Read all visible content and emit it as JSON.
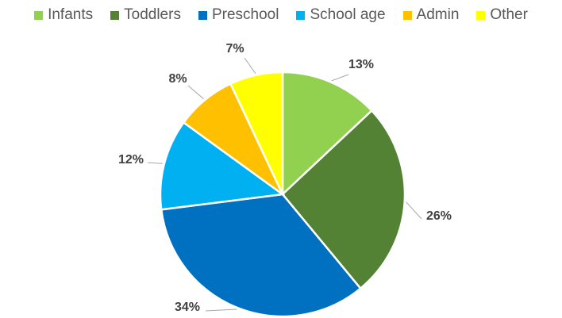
{
  "chart_data": {
    "type": "pie",
    "title": "",
    "legend_position": "top",
    "start_angle": "12 o'clock, clockwise",
    "slices": [
      {
        "name": "Infants",
        "value": 13,
        "label": "13%",
        "color": "#92d050"
      },
      {
        "name": "Toddlers",
        "value": 26,
        "label": "26%",
        "color": "#548235"
      },
      {
        "name": "Preschool",
        "value": 34,
        "label": "34%",
        "color": "#0070c0"
      },
      {
        "name": "School age",
        "value": 12,
        "label": "12%",
        "color": "#00b0f0"
      },
      {
        "name": "Admin",
        "value": 8,
        "label": "8%",
        "color": "#ffc000"
      },
      {
        "name": "Other",
        "value": 7,
        "label": "7%",
        "color": "#ffff00"
      }
    ]
  }
}
